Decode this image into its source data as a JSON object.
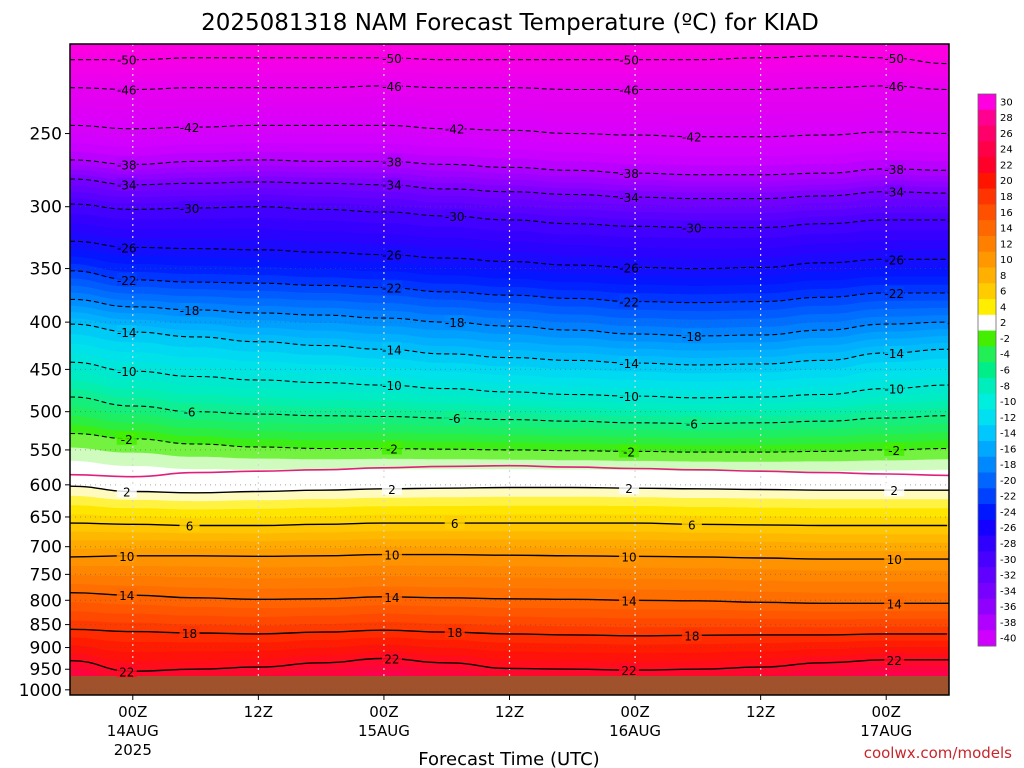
{
  "chart_data": {
    "type": "heatmap",
    "title": "2025081318 NAM Forecast Temperature (ºC) for KIAD",
    "xlabel": "Forecast Time (UTC)",
    "ylabel": "",
    "credit": "coolwx.com/models",
    "x_unit": "hours since 2025-08-13 18Z",
    "xlim": [
      0,
      84
    ],
    "ylim_hPa": [
      200,
      1013
    ],
    "y_scale": "log",
    "x_ticks": [
      {
        "x": 6,
        "top": "00Z",
        "mid": "14AUG",
        "bot": "2025"
      },
      {
        "x": 18,
        "top": "12Z",
        "mid": "",
        "bot": ""
      },
      {
        "x": 30,
        "top": "00Z",
        "mid": "15AUG",
        "bot": ""
      },
      {
        "x": 42,
        "top": "12Z",
        "mid": "",
        "bot": ""
      },
      {
        "x": 54,
        "top": "00Z",
        "mid": "16AUG",
        "bot": ""
      },
      {
        "x": 66,
        "top": "12Z",
        "mid": "",
        "bot": ""
      },
      {
        "x": 78,
        "top": "00Z",
        "mid": "17AUG",
        "bot": ""
      }
    ],
    "y_ticks": [
      250,
      300,
      350,
      400,
      450,
      500,
      550,
      600,
      650,
      700,
      750,
      800,
      850,
      900,
      950,
      1000
    ],
    "grid": true,
    "times": [
      0,
      6,
      12,
      18,
      24,
      30,
      36,
      42,
      48,
      54,
      60,
      66,
      72,
      78,
      84
    ],
    "freezing_level_hPa": [
      585,
      588,
      582,
      580,
      578,
      575,
      573,
      572,
      574,
      576,
      578,
      580,
      582,
      584,
      586
    ],
    "isotherm_levels_hPa": [
      {
        "t": -50,
        "p": [
          208,
          208,
          207,
          207,
          207,
          207,
          208,
          208,
          208,
          208,
          208,
          207,
          206,
          207,
          210
        ]
      },
      {
        "t": -46,
        "p": [
          223,
          224,
          223,
          223,
          223,
          222,
          223,
          223,
          224,
          224,
          224,
          224,
          223,
          222,
          224
        ]
      },
      {
        "t": -42,
        "p": [
          245,
          247,
          246,
          245,
          245,
          245,
          247,
          248,
          250,
          251,
          252,
          252,
          251,
          249,
          250
        ]
      },
      {
        "t": -38,
        "p": [
          267,
          270,
          268,
          267,
          268,
          268,
          270,
          272,
          274,
          276,
          277,
          277,
          276,
          273,
          274
        ]
      },
      {
        "t": -34,
        "p": [
          280,
          284,
          283,
          282,
          283,
          284,
          287,
          289,
          291,
          293,
          294,
          294,
          292,
          289,
          290
        ]
      },
      {
        "t": -30,
        "p": [
          298,
          302,
          301,
          300,
          302,
          304,
          307,
          310,
          313,
          315,
          316,
          316,
          313,
          310,
          310
        ]
      },
      {
        "t": -26,
        "p": [
          327,
          332,
          333,
          334,
          336,
          338,
          341,
          344,
          347,
          349,
          350,
          349,
          345,
          342,
          342
        ]
      },
      {
        "t": -22,
        "p": [
          352,
          360,
          362,
          363,
          365,
          367,
          371,
          374,
          377,
          380,
          381,
          380,
          376,
          372,
          372
        ]
      },
      {
        "t": -18,
        "p": [
          378,
          385,
          388,
          391,
          393,
          396,
          400,
          404,
          408,
          412,
          414,
          413,
          408,
          402,
          400
        ]
      },
      {
        "t": -14,
        "p": [
          402,
          410,
          415,
          420,
          424,
          428,
          433,
          437,
          440,
          443,
          445,
          444,
          440,
          432,
          428
        ]
      },
      {
        "t": -10,
        "p": [
          442,
          452,
          458,
          462,
          465,
          468,
          472,
          476,
          479,
          481,
          483,
          482,
          479,
          472,
          468
        ]
      },
      {
        "t": -6,
        "p": [
          482,
          493,
          500,
          503,
          505,
          506,
          508,
          510,
          512,
          514,
          515,
          514,
          512,
          508,
          505
        ]
      },
      {
        "t": -2,
        "p": [
          528,
          535,
          542,
          546,
          548,
          548,
          549,
          550,
          551,
          552,
          553,
          553,
          552,
          550,
          548
        ]
      },
      {
        "t": 2,
        "p": [
          602,
          610,
          612,
          610,
          608,
          606,
          605,
          604,
          604,
          605,
          606,
          607,
          608,
          608,
          608
        ]
      },
      {
        "t": 6,
        "p": [
          660,
          662,
          664,
          664,
          662,
          660,
          660,
          660,
          660,
          660,
          662,
          663,
          664,
          664,
          664
        ]
      },
      {
        "t": 10,
        "p": [
          718,
          716,
          716,
          717,
          716,
          714,
          714,
          715,
          716,
          717,
          718,
          720,
          722,
          722,
          722
        ]
      },
      {
        "t": 14,
        "p": [
          785,
          790,
          795,
          798,
          797,
          793,
          795,
          797,
          798,
          800,
          801,
          804,
          806,
          806,
          806
        ]
      },
      {
        "t": 18,
        "p": [
          860,
          865,
          868,
          870,
          866,
          862,
          866,
          870,
          872,
          874,
          873,
          872,
          872,
          870,
          870
        ]
      },
      {
        "t": 22,
        "p": [
          930,
          955,
          950,
          945,
          935,
          925,
          935,
          948,
          950,
          952,
          950,
          945,
          935,
          928,
          928
        ]
      }
    ],
    "colorbar": {
      "labels": [
        "30",
        "28",
        "26",
        "24",
        "22",
        "20",
        "18",
        "16",
        "14",
        "12",
        "10",
        "8",
        "6",
        "4",
        "2",
        "-2",
        "-4",
        "-6",
        "-8",
        "-10",
        "-12",
        "-14",
        "-16",
        "-18",
        "-20",
        "-22",
        "-24",
        "-26",
        "-28",
        "-30",
        "-32",
        "-34",
        "-36",
        "-38",
        "-40"
      ],
      "colors": [
        "#ff00e0",
        "#ff0090",
        "#ff006a",
        "#ff0048",
        "#ff0028",
        "#ff1400",
        "#ff3400",
        "#ff5000",
        "#ff6800",
        "#ff8000",
        "#ff9800",
        "#ffb000",
        "#ffcc00",
        "#ffee00",
        "#ffffff",
        "#44ee00",
        "#22ee55",
        "#00ee88",
        "#00eebb",
        "#00eedd",
        "#00e0f0",
        "#00c8ff",
        "#00a8ff",
        "#0088ff",
        "#0066ff",
        "#0040ff",
        "#0018ff",
        "#1400ff",
        "#3000ff",
        "#4800ff",
        "#6000ff",
        "#7800ff",
        "#9000ff",
        "#b000ff",
        "#d000ff"
      ]
    }
  }
}
